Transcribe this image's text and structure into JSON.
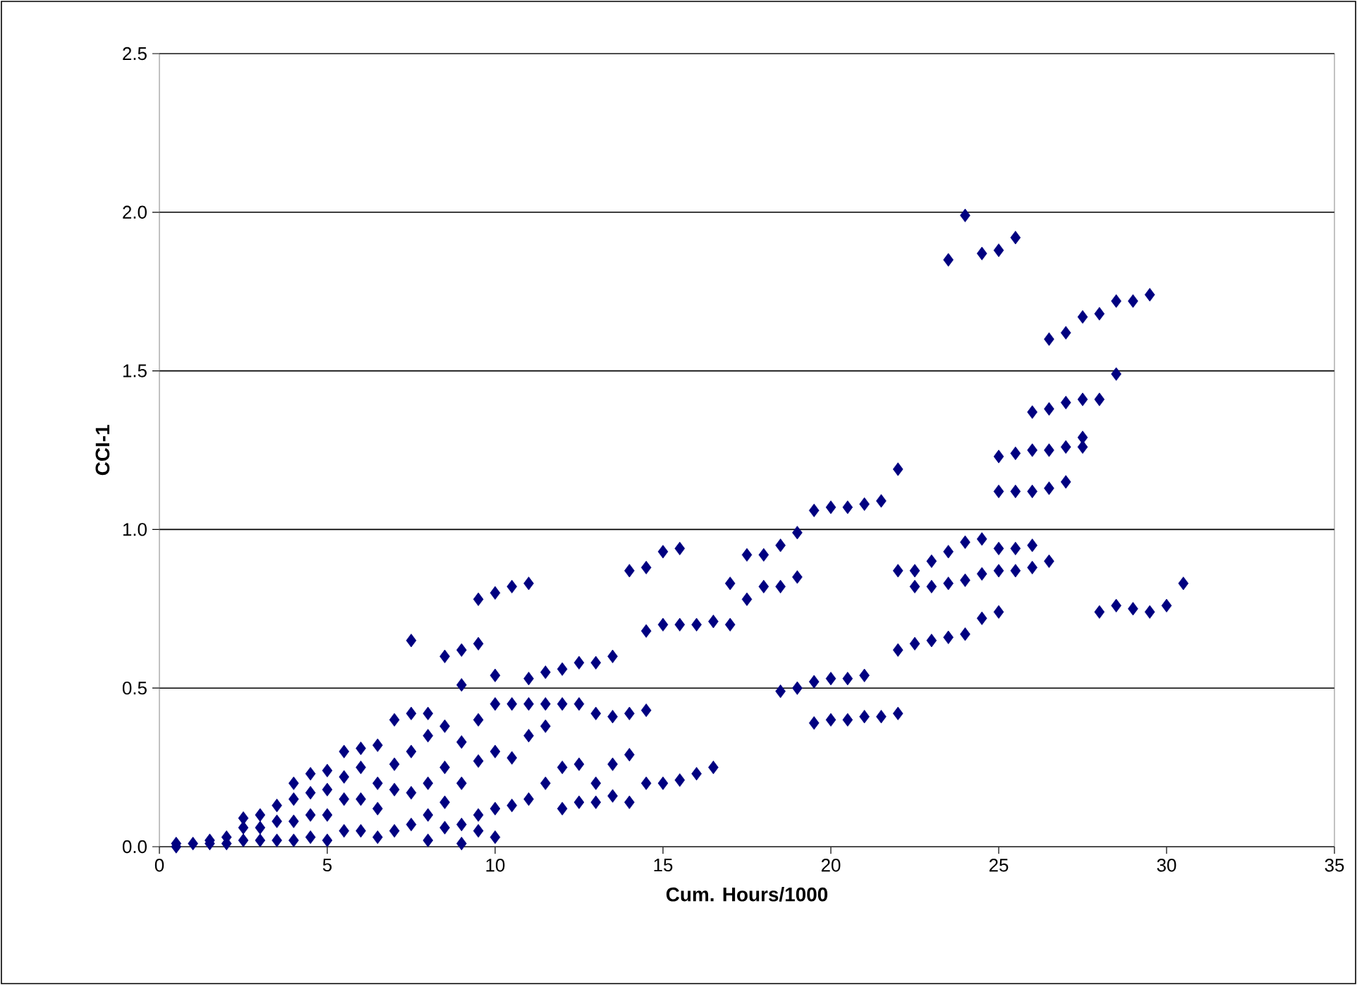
{
  "chart_data": {
    "type": "scatter",
    "xlabel": "Cum. Hours/1000",
    "ylabel": "CCI-1",
    "xlim": [
      0,
      35
    ],
    "xticks": [
      0,
      5,
      10,
      15,
      20,
      25,
      30,
      35
    ],
    "ylim": [
      0,
      2.5
    ],
    "yticks": [
      {
        "value": 0,
        "label": "0.0"
      },
      {
        "value": 0.5,
        "label": "0.5"
      },
      {
        "value": 1,
        "label": "1.0"
      },
      {
        "value": 1.5,
        "label": "1.5"
      },
      {
        "value": 2,
        "label": "2.0"
      },
      {
        "value": 2.5,
        "label": "2.5"
      }
    ],
    "grid": "y",
    "marker": "diamond",
    "series": [
      {
        "color": "#000080",
        "x": [
          0.5,
          0.5,
          1,
          1.5,
          1.5,
          2,
          2,
          2.5,
          2.5,
          2.5,
          3,
          3,
          3,
          3.5,
          3.5,
          3.5,
          4,
          4,
          4,
          4,
          4.5,
          4.5,
          4.5,
          4.5,
          5,
          5,
          5,
          5,
          5.5,
          5.5,
          5.5,
          5.5,
          6,
          6,
          6,
          6,
          6.5,
          6.5,
          6.5,
          6.5,
          7,
          7,
          7,
          7,
          7.5,
          7.5,
          7.5,
          7.5,
          7.5,
          8,
          8,
          8,
          8,
          8,
          8.5,
          8.5,
          8.5,
          8.5,
          8.5,
          9,
          9,
          9,
          9,
          9,
          9,
          9.5,
          9.5,
          9.5,
          9.5,
          9.5,
          9.5,
          10,
          10,
          10,
          10,
          10,
          10,
          10.5,
          10.5,
          10.5,
          10.5,
          11,
          11,
          11,
          11,
          11,
          11.5,
          11.5,
          11.5,
          11.5,
          12,
          12,
          12,
          12,
          12.5,
          12.5,
          12.5,
          12.5,
          13,
          13,
          13,
          13,
          13.5,
          13.5,
          13.5,
          13.5,
          14,
          14,
          14,
          14,
          14.5,
          14.5,
          14.5,
          14.5,
          15,
          15,
          15,
          15.5,
          15.5,
          15.5,
          16,
          16,
          16.5,
          16.5,
          17,
          17,
          17.5,
          17.5,
          18,
          18,
          18.5,
          18.5,
          18.5,
          19,
          19,
          19,
          19.5,
          19.5,
          19.5,
          20,
          20,
          20,
          20.5,
          20.5,
          20.5,
          21,
          21,
          21,
          21.5,
          21.5,
          22,
          22,
          22,
          22,
          22.5,
          22.5,
          22.5,
          23,
          23,
          23,
          23.5,
          23.5,
          23.5,
          23.5,
          24,
          24,
          24,
          24,
          24.5,
          24.5,
          24.5,
          24.5,
          25,
          25,
          25,
          25,
          25,
          25,
          25.5,
          25.5,
          25.5,
          25.5,
          25.5,
          26,
          26,
          26,
          26,
          26,
          26.5,
          26.5,
          26.5,
          26.5,
          26.5,
          27,
          27,
          27,
          27,
          27.5,
          27.5,
          27.5,
          27.5,
          28,
          28,
          28,
          28.5,
          28.5,
          28.5,
          29,
          29,
          29.5,
          29.5,
          30,
          30.5
        ],
        "values": [
          0,
          0.01,
          0.01,
          0.01,
          0.02,
          0.01,
          0.03,
          0.02,
          0.06,
          0.09,
          0.02,
          0.06,
          0.1,
          0.02,
          0.08,
          0.13,
          0.02,
          0.08,
          0.15,
          0.2,
          0.03,
          0.1,
          0.17,
          0.23,
          0.02,
          0.1,
          0.18,
          0.24,
          0.05,
          0.15,
          0.22,
          0.3,
          0.05,
          0.15,
          0.25,
          0.31,
          0.03,
          0.12,
          0.2,
          0.32,
          0.05,
          0.18,
          0.26,
          0.4,
          0.07,
          0.17,
          0.3,
          0.42,
          0.65,
          0.02,
          0.1,
          0.2,
          0.35,
          0.42,
          0.06,
          0.14,
          0.25,
          0.38,
          0.6,
          0.01,
          0.07,
          0.2,
          0.33,
          0.51,
          0.62,
          0.05,
          0.1,
          0.27,
          0.4,
          0.64,
          0.78,
          0.03,
          0.12,
          0.3,
          0.45,
          0.54,
          0.8,
          0.13,
          0.28,
          0.45,
          0.82,
          0.15,
          0.35,
          0.45,
          0.53,
          0.83,
          0.2,
          0.38,
          0.45,
          0.55,
          0.12,
          0.25,
          0.45,
          0.56,
          0.14,
          0.26,
          0.45,
          0.58,
          0.14,
          0.2,
          0.42,
          0.58,
          0.16,
          0.26,
          0.41,
          0.6,
          0.14,
          0.29,
          0.42,
          0.87,
          0.2,
          0.43,
          0.68,
          0.88,
          0.2,
          0.7,
          0.93,
          0.21,
          0.7,
          0.94,
          0.23,
          0.7,
          0.25,
          0.71,
          0.7,
          0.83,
          0.78,
          0.92,
          0.82,
          0.92,
          0.49,
          0.82,
          0.95,
          0.5,
          0.85,
          0.99,
          0.39,
          0.52,
          1.06,
          0.4,
          0.53,
          1.07,
          0.4,
          0.53,
          1.07,
          0.41,
          0.54,
          1.08,
          0.41,
          1.09,
          0.42,
          0.62,
          0.87,
          1.19,
          0.64,
          0.82,
          0.87,
          0.65,
          0.82,
          0.9,
          0.66,
          0.83,
          0.93,
          1.85,
          0.67,
          0.84,
          0.96,
          1.99,
          0.72,
          0.86,
          0.97,
          1.87,
          0.74,
          0.87,
          0.94,
          1.12,
          1.23,
          1.88,
          0.87,
          0.94,
          1.12,
          1.24,
          1.92,
          0.88,
          0.95,
          1.12,
          1.25,
          1.37,
          0.9,
          1.13,
          1.25,
          1.38,
          1.6,
          1.15,
          1.26,
          1.4,
          1.62,
          1.26,
          1.29,
          1.41,
          1.67,
          0.74,
          1.41,
          1.68,
          0.76,
          1.49,
          1.72,
          0.75,
          1.72,
          0.74,
          1.74,
          0.76,
          0.83
        ]
      }
    ]
  }
}
